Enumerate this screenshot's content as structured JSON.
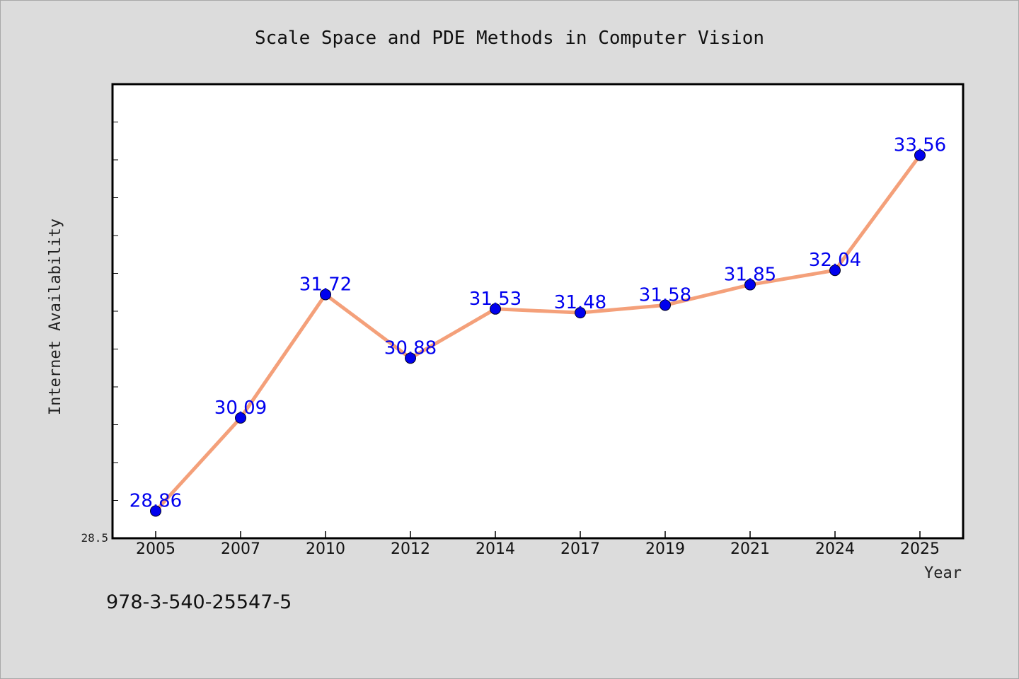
{
  "chart_data": {
    "type": "line",
    "title": "Scale Space and PDE Methods in Computer Vision",
    "xlabel": "Year",
    "ylabel": "Internet Availability",
    "categories": [
      "2005",
      "2007",
      "2010",
      "2012",
      "2014",
      "2017",
      "2019",
      "2021",
      "2024",
      "2025"
    ],
    "series": [
      {
        "values": [
          28.86,
          30.09,
          31.72,
          30.88,
          31.53,
          31.48,
          31.58,
          31.85,
          32.04,
          33.56
        ]
      }
    ],
    "data_labels": [
      "28.86",
      "30.09",
      "31.72",
      "30.88",
      "31.53",
      "31.48",
      "31.58",
      "31.85",
      "32.04",
      "33.56"
    ],
    "ylim": [
      28.5,
      34.5
    ],
    "y_tick_label": "28.5",
    "grid": false,
    "line_color": "#f4a07a",
    "marker_color": "#0000ee",
    "label_color": "#0000ee"
  },
  "annotation": "978-3-540-25547-5"
}
